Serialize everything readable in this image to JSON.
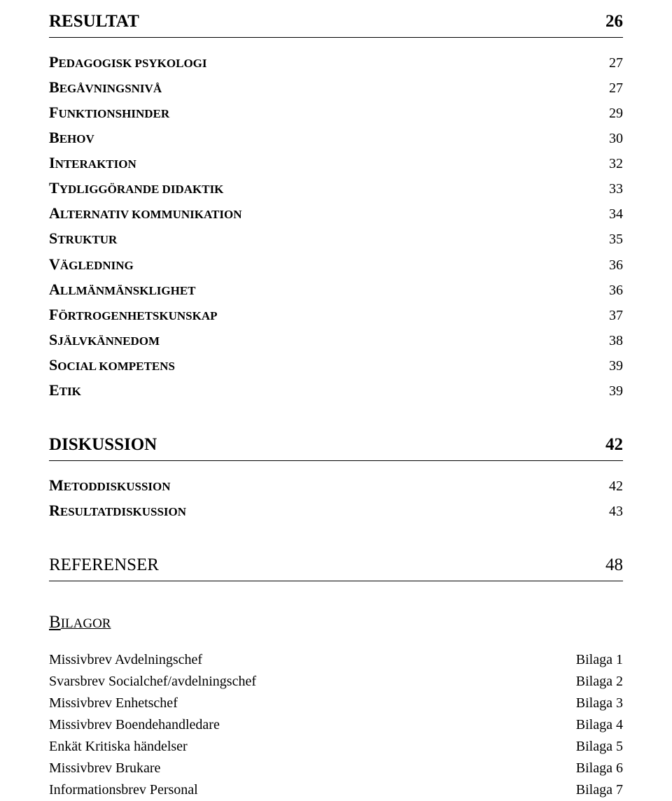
{
  "sections": {
    "resultat": {
      "title": "RESULTAT",
      "page": "26"
    },
    "diskussion": {
      "title": "DISKUSSION",
      "page": "42"
    },
    "referenser": {
      "title": "REFERENSER",
      "page": "48"
    }
  },
  "sc_resultat": {
    "pedagogisk": {
      "first": "P",
      "rest": "EDAGOGISK PSYKOLOGI",
      "page": "27"
    },
    "begavning": {
      "first": "B",
      "rest": "EGÅVNINGSNIVÅ",
      "page": "27"
    },
    "funktionshinder": {
      "first": "F",
      "rest": "UNKTIONSHINDER",
      "page": "29"
    },
    "behov": {
      "first": "B",
      "rest": "EHOV",
      "page": "30"
    },
    "interaktion": {
      "first": "I",
      "rest": "NTERAKTION",
      "page": "32"
    },
    "tydliggorande": {
      "first": "T",
      "rest": "YDLIGGÖRANDE DIDAKTIK",
      "page": "33"
    },
    "alternativ": {
      "first": "A",
      "rest": "LTERNATIV KOMMUNIKATION",
      "page": "34"
    },
    "struktur": {
      "first": "S",
      "rest": "TRUKTUR",
      "page": "35"
    },
    "vagledning": {
      "first": "V",
      "rest": "ÄGLEDNING",
      "page": "36"
    },
    "allman": {
      "first": "A",
      "rest": "LLMÄNMÄNSKLIGHET",
      "page": "36"
    },
    "fortrogenhet": {
      "first": "F",
      "rest": "ÖRTROGENHETSKUNSKAP",
      "page": "37"
    },
    "sjalvkannedom": {
      "first": "S",
      "rest": "JÄLVKÄNNEDOM",
      "page": "38"
    },
    "social": {
      "first": "S",
      "rest": "OCIAL KOMPETENS",
      "page": "39"
    },
    "etik": {
      "first": "E",
      "rest": "TIK",
      "page": "39"
    }
  },
  "sc_diskussion": {
    "metod": {
      "first": "M",
      "rest": "ETODDISKUSSION",
      "page": "42"
    },
    "resultat": {
      "first": "R",
      "rest": "ESULTATDISKUSSION",
      "page": "43"
    }
  },
  "bilagor_heading": {
    "first": "B",
    "rest": "ILAGOR"
  },
  "bilaga": {
    "r1": {
      "label": "Missivbrev Avdelningschef",
      "ref": "Bilaga 1"
    },
    "r2": {
      "label": "Svarsbrev Socialchef/avdelningschef",
      "ref": "Bilaga 2"
    },
    "r3": {
      "label": "Missivbrev Enhetschef",
      "ref": "Bilaga 3"
    },
    "r4": {
      "label": "Missivbrev Boendehandledare",
      "ref": "Bilaga 4"
    },
    "r5": {
      "label": "Enkät Kritiska händelser",
      "ref": "Bilaga 5"
    },
    "r6": {
      "label": "Missivbrev Brukare",
      "ref": "Bilaga 6"
    },
    "r7": {
      "label": "Informationsbrev Personal",
      "ref": "Bilaga 7"
    }
  }
}
